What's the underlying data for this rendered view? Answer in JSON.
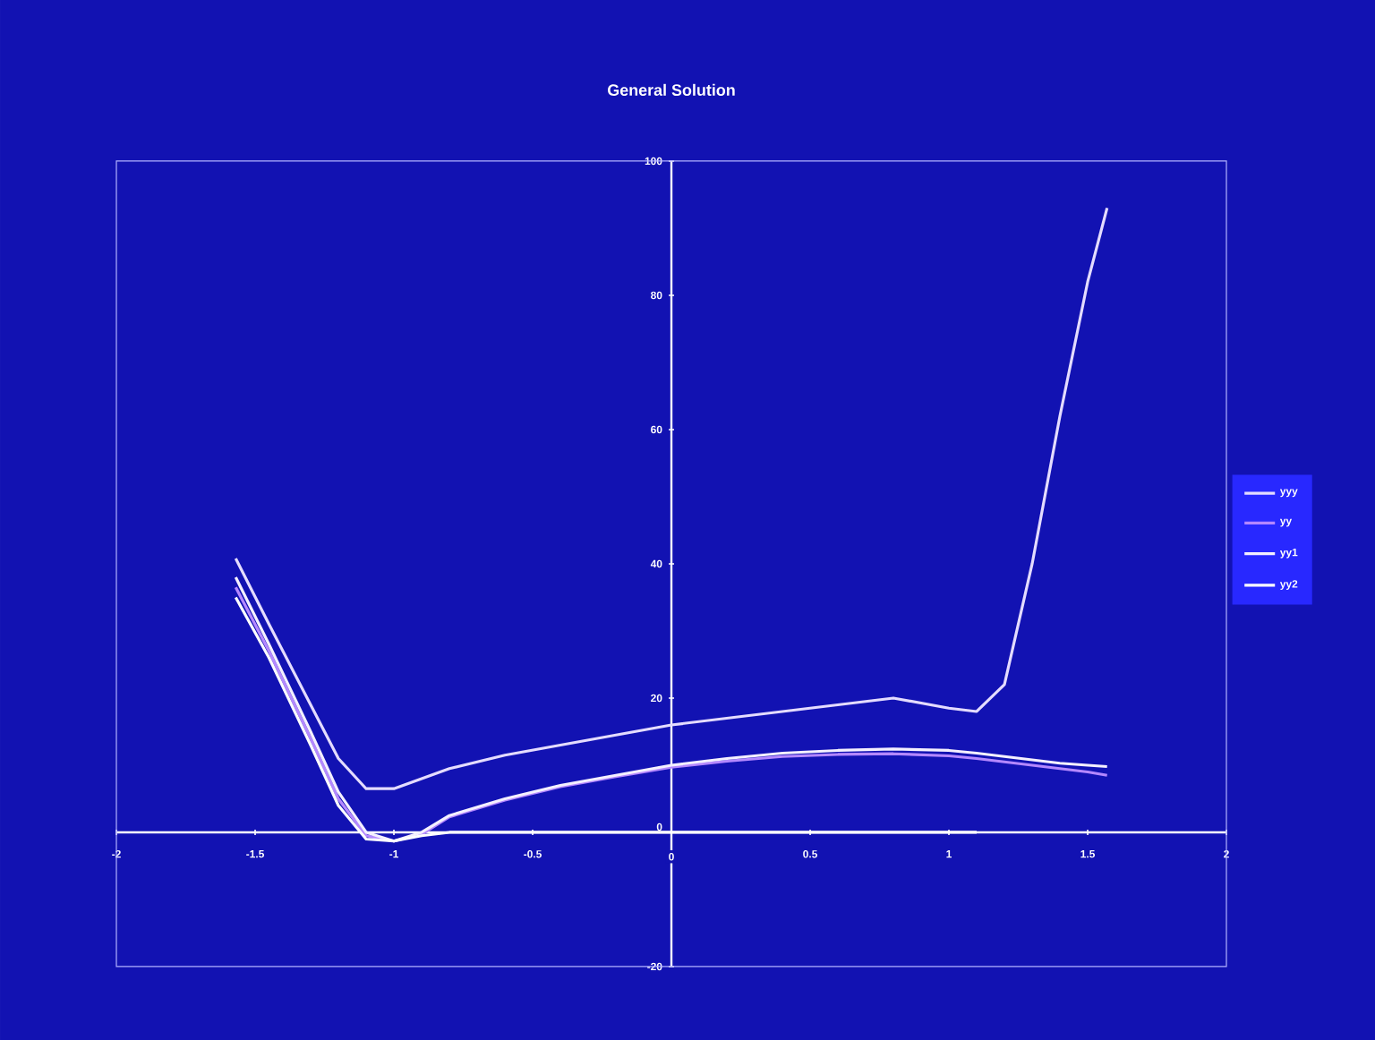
{
  "chart_data": {
    "type": "line",
    "title": "General Solution",
    "x": [
      -1.57,
      -1.45,
      -1.3,
      -1.2,
      -1.1,
      -1.0,
      -0.9,
      -0.8,
      -0.6,
      -0.4,
      -0.2,
      0,
      0.2,
      0.4,
      0.6,
      0.8,
      1.0,
      1.1,
      1.2,
      1.3,
      1.4,
      1.5,
      1.57
    ],
    "series": [
      {
        "name": "yyy",
        "color": "#e4dcff",
        "values": [
          40.8,
          31,
          19,
          11,
          6.5,
          6.5,
          8,
          9.5,
          11.5,
          13,
          14.5,
          16,
          17,
          18,
          19,
          20,
          18.5,
          18,
          22,
          40,
          62,
          82,
          93
        ]
      },
      {
        "name": "yy",
        "color": "#b488ff",
        "values": [
          36.5,
          27,
          14,
          5,
          -0.5,
          -1.3,
          -0.3,
          2.3,
          4.8,
          6.8,
          8.3,
          9.7,
          10.6,
          11.3,
          11.6,
          11.7,
          11.4,
          11,
          10.5,
          10,
          9.5,
          9,
          8.5
        ]
      },
      {
        "name": "yy1",
        "color": "#f4f0ff",
        "values": [
          38,
          28,
          15,
          6,
          0,
          -1.3,
          0,
          2.5,
          5,
          7,
          8.5,
          10,
          11,
          11.8,
          12.2,
          12.4,
          12.2,
          11.8,
          11.3,
          10.8,
          10.3,
          10,
          9.8
        ]
      },
      {
        "name": "yy2",
        "color": "#ffffff",
        "values": [
          35,
          26,
          13,
          4,
          -1,
          -1.3,
          -0.5,
          0,
          0,
          0,
          0,
          0,
          0,
          0,
          0,
          0,
          0,
          0,
          null,
          null,
          null,
          null,
          null
        ]
      }
    ],
    "xlim": [
      -2,
      2
    ],
    "ylim": [
      -20,
      100
    ],
    "xticks": [
      -2,
      -1.5,
      -1,
      -0.5,
      0,
      0.5,
      1,
      1.5,
      2
    ],
    "yticks": [
      -20,
      0,
      20,
      40,
      60,
      80,
      100
    ],
    "legend": "right"
  }
}
